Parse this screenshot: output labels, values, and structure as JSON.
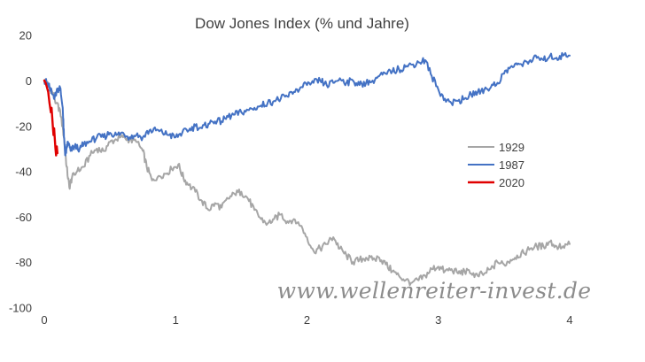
{
  "chart_data": {
    "type": "line",
    "title": "Dow Jones Index (% und Jahre)",
    "xlabel": "",
    "ylabel": "",
    "xlim": [
      0,
      4
    ],
    "ylim": [
      -100,
      20
    ],
    "x_ticks": [
      "0",
      "1",
      "2",
      "3",
      "4"
    ],
    "y_ticks": [
      "20",
      "0",
      "-20",
      "-40",
      "-60",
      "-80",
      "-100"
    ],
    "grid": false,
    "legend_position": "right",
    "series": [
      {
        "name": "1929",
        "color": "#a6a6a6",
        "points": [
          [
            0,
            0
          ],
          [
            0.03,
            -2
          ],
          [
            0.06,
            -5
          ],
          [
            0.09,
            -10
          ],
          [
            0.12,
            -13
          ],
          [
            0.15,
            -25
          ],
          [
            0.17,
            -38
          ],
          [
            0.19,
            -47
          ],
          [
            0.21,
            -43
          ],
          [
            0.25,
            -40
          ],
          [
            0.3,
            -38
          ],
          [
            0.35,
            -33
          ],
          [
            0.4,
            -30
          ],
          [
            0.45,
            -31
          ],
          [
            0.5,
            -27
          ],
          [
            0.55,
            -26
          ],
          [
            0.6,
            -25
          ],
          [
            0.65,
            -26
          ],
          [
            0.7,
            -27
          ],
          [
            0.75,
            -31
          ],
          [
            0.78,
            -38
          ],
          [
            0.82,
            -44
          ],
          [
            0.87,
            -42
          ],
          [
            0.92,
            -41
          ],
          [
            0.97,
            -39
          ],
          [
            1.02,
            -37
          ],
          [
            1.06,
            -43
          ],
          [
            1.1,
            -46
          ],
          [
            1.15,
            -49
          ],
          [
            1.2,
            -53
          ],
          [
            1.25,
            -57
          ],
          [
            1.3,
            -54
          ],
          [
            1.35,
            -56
          ],
          [
            1.4,
            -52
          ],
          [
            1.45,
            -50
          ],
          [
            1.5,
            -49
          ],
          [
            1.55,
            -52
          ],
          [
            1.6,
            -57
          ],
          [
            1.65,
            -61
          ],
          [
            1.7,
            -63
          ],
          [
            1.75,
            -61
          ],
          [
            1.8,
            -59
          ],
          [
            1.85,
            -62
          ],
          [
            1.9,
            -61
          ],
          [
            1.95,
            -64
          ],
          [
            2.0,
            -69
          ],
          [
            2.05,
            -75
          ],
          [
            2.1,
            -74
          ],
          [
            2.15,
            -72
          ],
          [
            2.2,
            -69
          ],
          [
            2.25,
            -74
          ],
          [
            2.3,
            -77
          ],
          [
            2.35,
            -80
          ],
          [
            2.4,
            -79
          ],
          [
            2.45,
            -78
          ],
          [
            2.5,
            -79
          ],
          [
            2.55,
            -78
          ],
          [
            2.6,
            -81
          ],
          [
            2.65,
            -84
          ],
          [
            2.7,
            -86
          ],
          [
            2.75,
            -88
          ],
          [
            2.8,
            -89
          ],
          [
            2.85,
            -88
          ],
          [
            2.9,
            -86
          ],
          [
            2.95,
            -83
          ],
          [
            3.0,
            -82
          ],
          [
            3.05,
            -84
          ],
          [
            3.1,
            -83
          ],
          [
            3.15,
            -85
          ],
          [
            3.2,
            -84
          ],
          [
            3.25,
            -85
          ],
          [
            3.3,
            -86
          ],
          [
            3.35,
            -85
          ],
          [
            3.4,
            -83
          ],
          [
            3.45,
            -80
          ],
          [
            3.5,
            -81
          ],
          [
            3.55,
            -79
          ],
          [
            3.6,
            -77
          ],
          [
            3.65,
            -76
          ],
          [
            3.7,
            -74
          ],
          [
            3.75,
            -73
          ],
          [
            3.8,
            -73
          ],
          [
            3.85,
            -71
          ],
          [
            3.9,
            -73
          ],
          [
            3.95,
            -73
          ],
          [
            4.0,
            -72
          ]
        ]
      },
      {
        "name": "1987",
        "color": "#4472c4",
        "points": [
          [
            0,
            0
          ],
          [
            0.02,
            -1
          ],
          [
            0.04,
            -3
          ],
          [
            0.06,
            -6
          ],
          [
            0.08,
            -7
          ],
          [
            0.1,
            -4
          ],
          [
            0.12,
            -3
          ],
          [
            0.14,
            -12
          ],
          [
            0.15,
            -25
          ],
          [
            0.16,
            -33
          ],
          [
            0.17,
            -30
          ],
          [
            0.18,
            -27
          ],
          [
            0.2,
            -31
          ],
          [
            0.23,
            -29
          ],
          [
            0.27,
            -30
          ],
          [
            0.3,
            -28
          ],
          [
            0.35,
            -27
          ],
          [
            0.4,
            -25
          ],
          [
            0.45,
            -25
          ],
          [
            0.5,
            -23
          ],
          [
            0.55,
            -24
          ],
          [
            0.6,
            -23
          ],
          [
            0.65,
            -25
          ],
          [
            0.7,
            -24
          ],
          [
            0.75,
            -25
          ],
          [
            0.8,
            -22
          ],
          [
            0.85,
            -22
          ],
          [
            0.9,
            -23
          ],
          [
            0.95,
            -24
          ],
          [
            1.0,
            -25
          ],
          [
            1.05,
            -23
          ],
          [
            1.1,
            -22
          ],
          [
            1.15,
            -20
          ],
          [
            1.2,
            -21
          ],
          [
            1.25,
            -19
          ],
          [
            1.3,
            -18
          ],
          [
            1.35,
            -18
          ],
          [
            1.4,
            -16
          ],
          [
            1.45,
            -15
          ],
          [
            1.5,
            -14
          ],
          [
            1.55,
            -13
          ],
          [
            1.6,
            -12
          ],
          [
            1.65,
            -11
          ],
          [
            1.7,
            -10
          ],
          [
            1.75,
            -9
          ],
          [
            1.8,
            -8
          ],
          [
            1.85,
            -7
          ],
          [
            1.9,
            -5
          ],
          [
            1.95,
            -3
          ],
          [
            2.0,
            -2
          ],
          [
            2.05,
            -1
          ],
          [
            2.1,
            0
          ],
          [
            2.15,
            -2
          ],
          [
            2.2,
            -1
          ],
          [
            2.25,
            1
          ],
          [
            2.3,
            -1
          ],
          [
            2.35,
            0
          ],
          [
            2.4,
            -2
          ],
          [
            2.45,
            -1
          ],
          [
            2.5,
            0
          ],
          [
            2.55,
            2
          ],
          [
            2.6,
            3
          ],
          [
            2.65,
            4
          ],
          [
            2.7,
            5
          ],
          [
            2.75,
            6
          ],
          [
            2.8,
            7
          ],
          [
            2.85,
            8
          ],
          [
            2.9,
            9
          ],
          [
            2.95,
            2
          ],
          [
            3.0,
            -4
          ],
          [
            3.05,
            -8
          ],
          [
            3.1,
            -10
          ],
          [
            3.15,
            -9
          ],
          [
            3.2,
            -8
          ],
          [
            3.25,
            -6
          ],
          [
            3.3,
            -5
          ],
          [
            3.35,
            -4
          ],
          [
            3.4,
            -3
          ],
          [
            3.45,
            -1
          ],
          [
            3.5,
            3
          ],
          [
            3.55,
            6
          ],
          [
            3.6,
            7
          ],
          [
            3.65,
            8
          ],
          [
            3.7,
            9
          ],
          [
            3.75,
            10
          ],
          [
            3.8,
            9
          ],
          [
            3.85,
            11
          ],
          [
            3.9,
            10
          ],
          [
            3.95,
            11
          ],
          [
            4.0,
            11
          ]
        ]
      },
      {
        "name": "2020",
        "color": "#e00000",
        "points": [
          [
            0,
            0
          ],
          [
            0.01,
            -1
          ],
          [
            0.02,
            -3
          ],
          [
            0.03,
            -5
          ],
          [
            0.04,
            -10
          ],
          [
            0.05,
            -14
          ],
          [
            0.055,
            -12
          ],
          [
            0.06,
            -16
          ],
          [
            0.065,
            -20
          ],
          [
            0.07,
            -24
          ],
          [
            0.075,
            -21
          ],
          [
            0.08,
            -26
          ],
          [
            0.085,
            -30
          ],
          [
            0.09,
            -33
          ],
          [
            0.095,
            -29
          ],
          [
            0.1,
            -32
          ]
        ]
      }
    ],
    "watermark": "www.wellenreiter-invest.de"
  }
}
